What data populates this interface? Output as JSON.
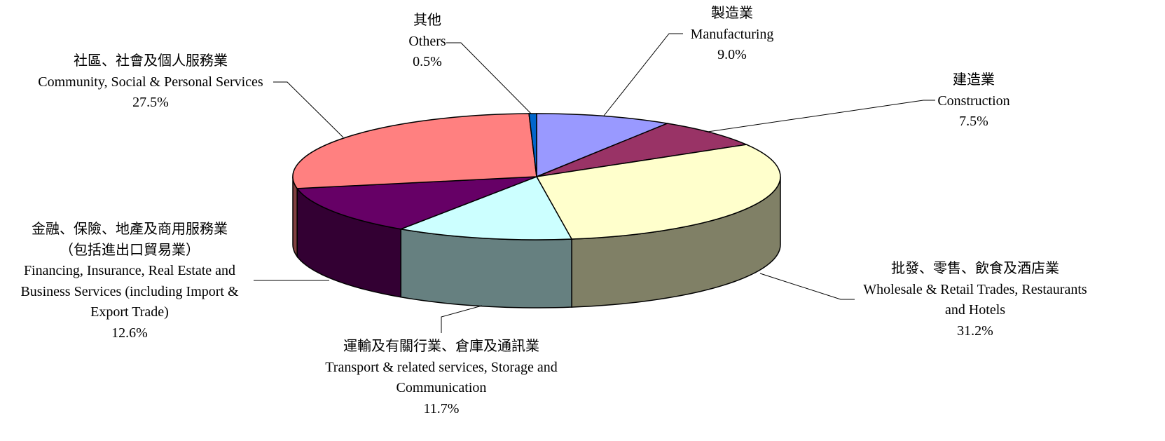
{
  "chart_data": {
    "type": "pie3d",
    "categories": [
      "製造業",
      "建造業",
      "批發、零售、飲食及酒店業",
      "運輸及有關行業、倉庫及通訊業",
      "金融、保險、地產及商用服務業（包括進出口貿易業）",
      "社區、社會及個人服務業",
      "其他"
    ],
    "categories_en": [
      "Manufacturing",
      "Construction",
      "Wholesale & Retail Trades, Restaurants and Hotels",
      "Transport & related services, Storage and Communication",
      "Financing, Insurance, Real Estate and Business Services (including Import & Export Trade)",
      "Community, Social & Personal Services",
      "Others"
    ],
    "values": [
      9.0,
      7.5,
      31.2,
      11.7,
      12.6,
      27.5,
      0.5
    ],
    "value_labels": [
      "9.0%",
      "7.5%",
      "31.2%",
      "11.7%",
      "12.6%",
      "27.5%",
      "0.5%"
    ],
    "colors": [
      "#9999ff",
      "#993366",
      "#ffffcc",
      "#ccffff",
      "#660066",
      "#ff8080",
      "#0066cc"
    ]
  }
}
